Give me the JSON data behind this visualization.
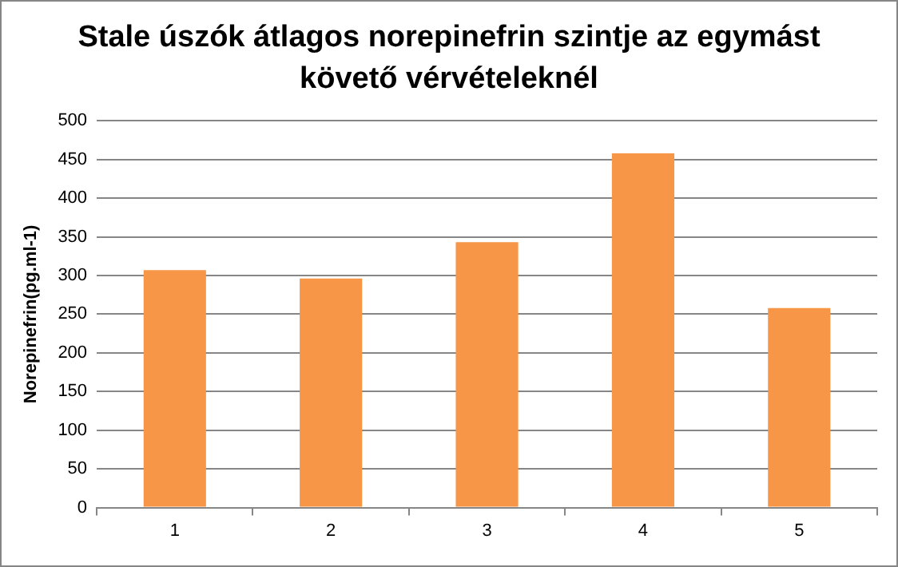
{
  "chart_data": {
    "type": "bar",
    "title": "Stale úszók átlagos norepinefrin szintje az egymást követő vérvételeknél",
    "ylabel": "Norepinefrin(pg.ml-1)",
    "categories": [
      "1",
      "2",
      "3",
      "4",
      "5"
    ],
    "values": [
      307,
      296,
      343,
      458,
      258
    ],
    "color": "#f79646",
    "ylim": [
      0,
      500
    ],
    "yticks": [
      0,
      50,
      100,
      150,
      200,
      250,
      300,
      350,
      400,
      450,
      500
    ],
    "grid": "y",
    "legend": false
  }
}
